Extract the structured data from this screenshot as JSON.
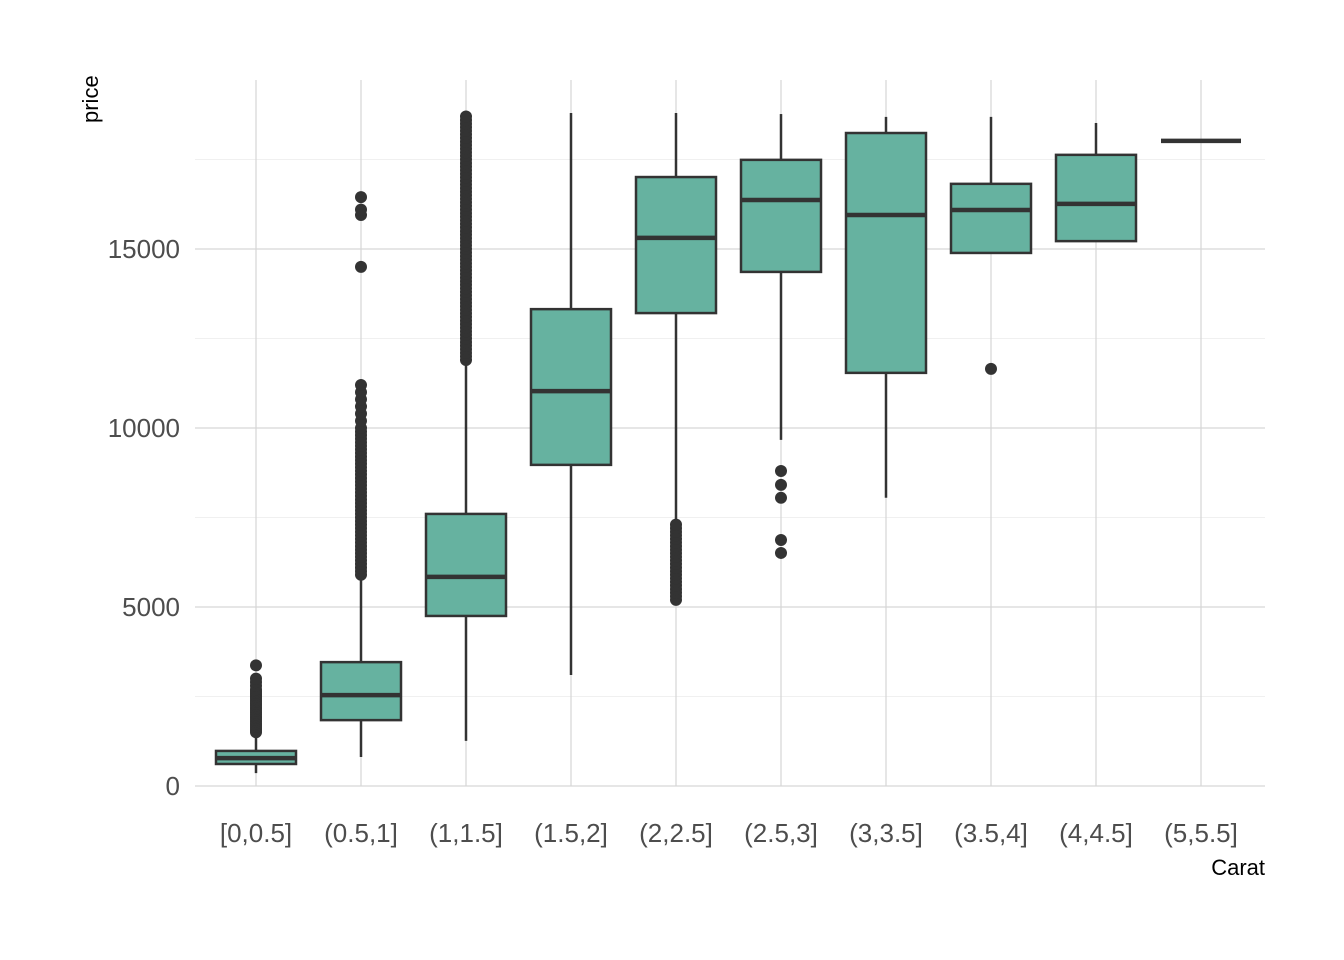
{
  "chart_data": {
    "type": "boxplot",
    "title": "",
    "xlabel": "Carat",
    "ylabel": "price",
    "ylim": [
      0,
      19000
    ],
    "yticks": [
      0,
      5000,
      10000,
      15000
    ],
    "ytick_labels": [
      "0",
      "5000",
      "10000",
      "15000"
    ],
    "grid": true,
    "fill_color": "#66b2a0",
    "line_color": "#333333",
    "categories": [
      "[0,0.5]",
      "(0.5,1]",
      "(1,1.5]",
      "(1.5,2]",
      "(2,2.5]",
      "(2.5,3]",
      "(3,3.5]",
      "(3.5,4]",
      "(4,4.5]",
      "(5,5.5]"
    ],
    "boxes": [
      {
        "whisker_low": 360,
        "q1": 615,
        "median": 780,
        "q3": 980,
        "whisker_high": 1480,
        "outliers": [
          1500,
          1550,
          1600,
          1650,
          1700,
          1750,
          1800,
          1850,
          1900,
          1950,
          2000,
          2050,
          2100,
          2150,
          2200,
          2250,
          2300,
          2350,
          2400,
          2450,
          2500,
          2550,
          2600,
          2650,
          2700,
          2800,
          2900,
          3000,
          3370
        ]
      },
      {
        "whisker_low": 810,
        "q1": 1840,
        "median": 2540,
        "q3": 3460,
        "whisker_high": 5840,
        "outliers": [
          5900,
          6000,
          6100,
          6200,
          6300,
          6400,
          6500,
          6600,
          6700,
          6800,
          6900,
          7000,
          7100,
          7200,
          7300,
          7400,
          7500,
          7600,
          7700,
          7800,
          7900,
          8000,
          8100,
          8200,
          8300,
          8400,
          8500,
          8600,
          8700,
          8800,
          8900,
          9000,
          9100,
          9200,
          9300,
          9400,
          9500,
          9600,
          9700,
          9800,
          9900,
          10000,
          10200,
          10400,
          10600,
          10800,
          11000,
          11200,
          14500,
          15950,
          16100,
          16450
        ]
      },
      {
        "whisker_low": 1260,
        "q1": 4750,
        "median": 5840,
        "q3": 7600,
        "whisker_high": 11820,
        "outliers": [
          11900,
          12000,
          12100,
          12200,
          12300,
          12400,
          12500,
          12600,
          12700,
          12800,
          12900,
          13000,
          13100,
          13200,
          13300,
          13400,
          13500,
          13600,
          13700,
          13800,
          13900,
          14000,
          14100,
          14200,
          14300,
          14400,
          14500,
          14600,
          14700,
          14800,
          14900,
          15000,
          15100,
          15200,
          15300,
          15400,
          15500,
          15600,
          15700,
          15800,
          15900,
          16000,
          16100,
          16200,
          16300,
          16400,
          16500,
          16600,
          16700,
          16800,
          16900,
          17000,
          17100,
          17200,
          17300,
          17400,
          17500,
          17600,
          17700,
          17800,
          17900,
          18000,
          18100,
          18200,
          18300,
          18400,
          18500,
          18600,
          18700
        ]
      },
      {
        "whisker_low": 3100,
        "q1": 8970,
        "median": 11030,
        "q3": 13320,
        "whisker_high": 18800,
        "outliers": []
      },
      {
        "whisker_low": 7450,
        "q1": 13210,
        "median": 15310,
        "q3": 17010,
        "whisker_high": 18800,
        "outliers": [
          5200,
          5300,
          5400,
          5500,
          5600,
          5700,
          5800,
          5900,
          6000,
          6100,
          6200,
          6300,
          6400,
          6500,
          6600,
          6700,
          6800,
          6900,
          7000,
          7100,
          7200,
          7300
        ]
      },
      {
        "whisker_low": 9670,
        "q1": 14360,
        "median": 16370,
        "q3": 17490,
        "whisker_high": 18770,
        "outliers": [
          6510,
          6870,
          8050,
          8410,
          8800
        ]
      },
      {
        "whisker_low": 8050,
        "q1": 11540,
        "median": 15950,
        "q3": 18240,
        "whisker_high": 18690,
        "outliers": []
      },
      {
        "whisker_low": 14890,
        "q1": 14890,
        "median": 16090,
        "q3": 16820,
        "whisker_high": 18690,
        "outliers": [
          11650
        ]
      },
      {
        "whisker_low": 15220,
        "q1": 15220,
        "median": 16260,
        "q3": 17630,
        "whisker_high": 18520,
        "outliers": []
      },
      {
        "whisker_low": 18020,
        "q1": 18020,
        "median": 18020,
        "q3": 18020,
        "whisker_high": 18020,
        "outliers": []
      }
    ]
  }
}
